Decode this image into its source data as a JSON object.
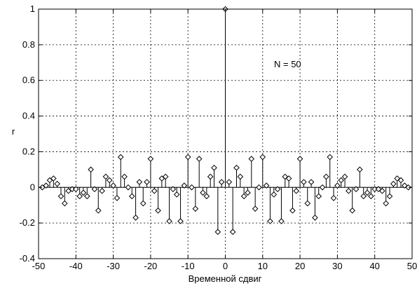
{
  "chart_data": {
    "type": "stem",
    "title": "",
    "xlabel": "Временной сдвиг",
    "ylabel": "r",
    "annotation": "N = 50",
    "xlim": [
      -50,
      50
    ],
    "ylim": [
      -0.4,
      1
    ],
    "xticks": [
      -50,
      -40,
      -30,
      -20,
      -10,
      0,
      10,
      20,
      30,
      40,
      50
    ],
    "xtick_labels": [
      "-50",
      "-40",
      "-30",
      "-20",
      "-10",
      "0",
      "10",
      "20",
      "30",
      "40",
      "50"
    ],
    "yticks": [
      -0.4,
      -0.2,
      0,
      0.2,
      0.4,
      0.6,
      0.8,
      1
    ],
    "ytick_labels": [
      "-0.4",
      "-0.2",
      "0",
      "0.2",
      "0.4",
      "0.6",
      "0.8",
      "1"
    ],
    "grid": true,
    "x": [
      -49,
      -48,
      -47,
      -46,
      -45,
      -44,
      -43,
      -42,
      -41,
      -40,
      -39,
      -38,
      -37,
      -36,
      -35,
      -34,
      -33,
      -32,
      -31,
      -30,
      -29,
      -28,
      -27,
      -26,
      -25,
      -24,
      -23,
      -22,
      -21,
      -20,
      -19,
      -18,
      -17,
      -16,
      -15,
      -14,
      -13,
      -12,
      -11,
      -10,
      -9,
      -8,
      -7,
      -6,
      -5,
      -4,
      -3,
      -2,
      -1,
      0,
      1,
      2,
      3,
      4,
      5,
      6,
      7,
      8,
      9,
      10,
      11,
      12,
      13,
      14,
      15,
      16,
      17,
      18,
      19,
      20,
      21,
      22,
      23,
      24,
      25,
      26,
      27,
      28,
      29,
      30,
      31,
      32,
      33,
      34,
      35,
      36,
      37,
      38,
      39,
      40,
      41,
      42,
      43,
      44,
      45,
      46,
      47,
      48,
      49
    ],
    "values": [
      0.0,
      0.01,
      0.04,
      0.05,
      0.02,
      -0.05,
      -0.09,
      -0.02,
      -0.01,
      -0.01,
      -0.05,
      -0.03,
      -0.05,
      0.1,
      -0.01,
      -0.13,
      -0.02,
      0.06,
      0.04,
      0.01,
      -0.06,
      0.17,
      0.06,
      0.0,
      -0.05,
      -0.17,
      0.03,
      -0.09,
      0.03,
      0.16,
      -0.02,
      -0.13,
      0.05,
      0.06,
      -0.19,
      -0.01,
      -0.04,
      -0.19,
      0.01,
      0.17,
      0.0,
      -0.12,
      0.16,
      -0.03,
      -0.05,
      0.06,
      0.11,
      -0.25,
      0.03,
      1.0,
      0.03,
      -0.25,
      0.11,
      0.06,
      -0.05,
      -0.03,
      0.16,
      -0.12,
      0.0,
      0.17,
      0.01,
      -0.19,
      -0.04,
      -0.01,
      -0.19,
      0.06,
      0.05,
      -0.13,
      -0.02,
      0.16,
      0.03,
      -0.09,
      0.03,
      -0.17,
      -0.05,
      0.0,
      0.06,
      0.17,
      -0.06,
      0.01,
      0.04,
      0.06,
      -0.02,
      -0.13,
      -0.01,
      0.1,
      -0.05,
      -0.03,
      -0.05,
      -0.01,
      -0.01,
      -0.02,
      -0.09,
      -0.05,
      0.02,
      0.05,
      0.04,
      0.01,
      0.0
    ]
  }
}
